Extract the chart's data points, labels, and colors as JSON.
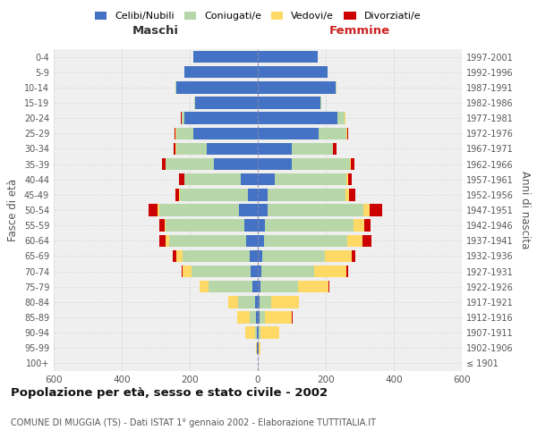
{
  "age_groups": [
    "100+",
    "95-99",
    "90-94",
    "85-89",
    "80-84",
    "75-79",
    "70-74",
    "65-69",
    "60-64",
    "55-59",
    "50-54",
    "45-49",
    "40-44",
    "35-39",
    "30-34",
    "25-29",
    "20-24",
    "15-19",
    "10-14",
    "5-9",
    "0-4"
  ],
  "birth_years": [
    "≤ 1901",
    "1902-1906",
    "1907-1911",
    "1912-1916",
    "1917-1921",
    "1922-1926",
    "1927-1931",
    "1932-1936",
    "1937-1941",
    "1942-1946",
    "1947-1951",
    "1952-1956",
    "1957-1961",
    "1962-1966",
    "1967-1971",
    "1972-1976",
    "1977-1981",
    "1982-1986",
    "1987-1991",
    "1992-1996",
    "1997-2001"
  ],
  "maschi": {
    "celibi": [
      1,
      2,
      3,
      5,
      8,
      15,
      20,
      25,
      35,
      40,
      55,
      30,
      50,
      130,
      150,
      190,
      215,
      185,
      240,
      215,
      190
    ],
    "coniugati": [
      0,
      1,
      5,
      20,
      50,
      130,
      175,
      195,
      225,
      230,
      235,
      200,
      165,
      140,
      90,
      50,
      10,
      2,
      1,
      0,
      0
    ],
    "vedovi": [
      0,
      2,
      30,
      35,
      30,
      25,
      25,
      20,
      10,
      5,
      5,
      2,
      2,
      2,
      2,
      2,
      0,
      0,
      0,
      0,
      0
    ],
    "divorziati": [
      0,
      0,
      0,
      0,
      0,
      2,
      5,
      10,
      20,
      15,
      25,
      10,
      15,
      10,
      5,
      2,
      2,
      0,
      0,
      0,
      0
    ]
  },
  "femmine": {
    "nubili": [
      1,
      2,
      3,
      5,
      5,
      8,
      10,
      12,
      18,
      22,
      30,
      28,
      50,
      100,
      100,
      180,
      235,
      185,
      230,
      205,
      175
    ],
    "coniugate": [
      0,
      0,
      5,
      15,
      35,
      110,
      155,
      185,
      245,
      260,
      280,
      230,
      210,
      170,
      120,
      80,
      20,
      3,
      2,
      0,
      0
    ],
    "vedove": [
      0,
      5,
      55,
      80,
      80,
      90,
      95,
      80,
      45,
      30,
      20,
      10,
      5,
      3,
      2,
      2,
      2,
      0,
      0,
      0,
      0
    ],
    "divorziate": [
      0,
      0,
      0,
      2,
      2,
      2,
      5,
      10,
      25,
      20,
      35,
      20,
      10,
      12,
      10,
      5,
      2,
      0,
      0,
      0,
      0
    ]
  },
  "colors": {
    "celibi_nubili": "#4472c4",
    "coniugati": "#b7d7a8",
    "vedovi": "#ffd966",
    "divorziati": "#cc0000"
  },
  "title": "Popolazione per età, sesso e stato civile - 2002",
  "subtitle": "COMUNE DI MUGGIA (TS) - Dati ISTAT 1° gennaio 2002 - Elaborazione TUTTITALIA.IT",
  "xlabel_left": "Maschi",
  "xlabel_right": "Femmine",
  "ylabel_left": "Fasce di età",
  "ylabel_right": "Anni di nascita",
  "xlim": 600,
  "legend_labels": [
    "Celibi/Nubili",
    "Coniugati/e",
    "Vedovi/e",
    "Divorziati/e"
  ],
  "bg_color": "#ffffff",
  "plot_bg": "#efefef",
  "grid_color": "#cccccc"
}
